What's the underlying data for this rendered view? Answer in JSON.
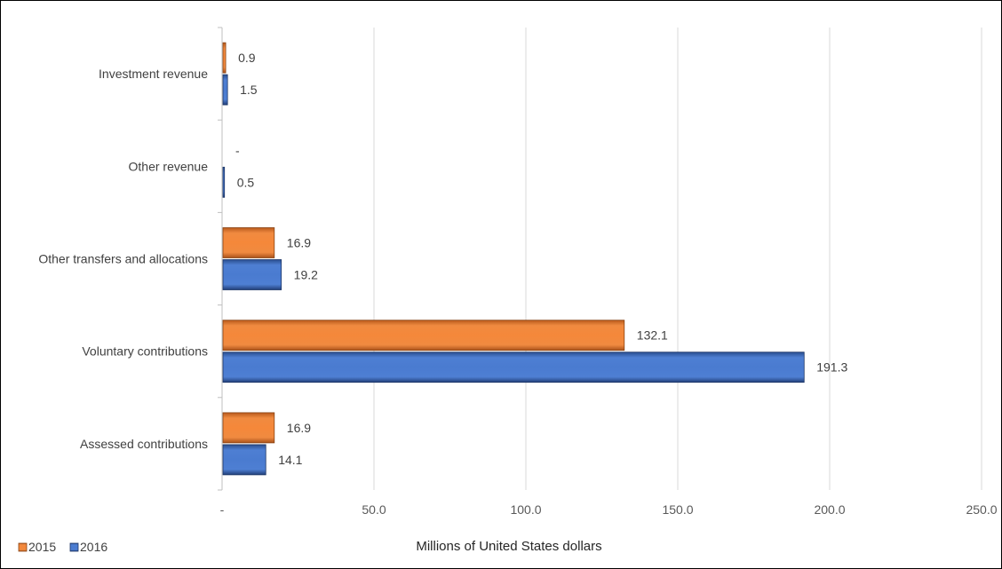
{
  "chart_data": {
    "type": "bar",
    "orientation": "horizontal",
    "categories": [
      "Assessed contributions",
      "Voluntary contributions",
      "Other transfers and allocations",
      "Other revenue",
      "Investment revenue"
    ],
    "series": [
      {
        "name": "2015",
        "values": [
          16.9,
          132.1,
          16.9,
          0,
          0.9
        ],
        "labels": [
          "16.9",
          "132.1",
          "16.9",
          "-",
          "0.9"
        ],
        "color": "#ED7D31"
      },
      {
        "name": "2016",
        "values": [
          14.1,
          191.3,
          19.2,
          0.5,
          1.5
        ],
        "labels": [
          "14.1",
          "191.3",
          "19.2",
          "0.5",
          "1.5"
        ],
        "color": "#4472C4"
      }
    ],
    "xlim": [
      0,
      250
    ],
    "x_ticks": [
      0,
      50,
      100,
      150,
      200,
      250
    ],
    "x_tick_labels": [
      "-",
      "50.0",
      "100.0",
      "150.0",
      "200.0",
      "250.0"
    ],
    "xlabel": "Millions of United States dollars",
    "ylabel": "",
    "title": "",
    "grid": true,
    "legend_position": "bottom-left"
  }
}
